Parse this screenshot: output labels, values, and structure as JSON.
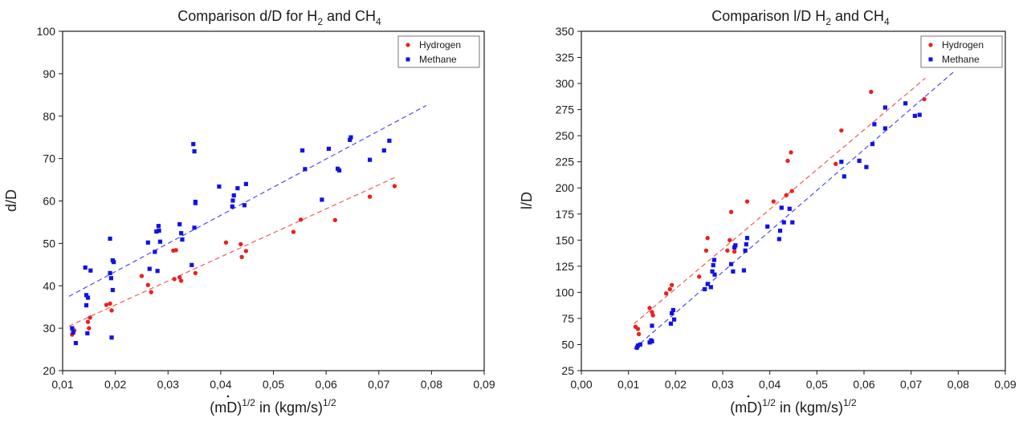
{
  "chart_data": [
    {
      "type": "scatter",
      "title": "Comparison d/D for H",
      "title_sub1": "2",
      "title_mid": " and CH",
      "title_sub2": "4",
      "xlabel_prefix": "(",
      "xlabel_mdot": "m",
      "xlabel_mid": "D)",
      "xlabel_sup1": "1/2",
      "xlabel_mid2": " in (kgm/s)",
      "xlabel_sup2": "1/2",
      "ylabel": "d/D",
      "xlim": [
        0.01,
        0.09
      ],
      "ylim": [
        20,
        100
      ],
      "xticks": [
        "0,01",
        "0,02",
        "0,03",
        "0,04",
        "0,05",
        "0,06",
        "0,07",
        "0,08",
        "0,09"
      ],
      "yticks": [
        "20",
        "30",
        "40",
        "50",
        "60",
        "70",
        "80",
        "90",
        "100"
      ],
      "legend_position": "top-right",
      "grid": false,
      "colors": {
        "hydrogen": "#e8231f",
        "methane": "#1212e6"
      },
      "series": [
        {
          "name": "Hydrogen",
          "marker": "circle",
          "points": [
            [
              0.0118,
              28.5
            ],
            [
              0.0122,
              29.5
            ],
            [
              0.0148,
              31.5
            ],
            [
              0.015,
              30.0
            ],
            [
              0.0152,
              32.5
            ],
            [
              0.0183,
              35.5
            ],
            [
              0.019,
              35.8
            ],
            [
              0.0193,
              34.2
            ],
            [
              0.025,
              42.3
            ],
            [
              0.0262,
              40.2
            ],
            [
              0.0268,
              38.5
            ],
            [
              0.031,
              48.3
            ],
            [
              0.0315,
              48.4
            ],
            [
              0.0312,
              41.6
            ],
            [
              0.0322,
              42.0
            ],
            [
              0.0325,
              41.2
            ],
            [
              0.0352,
              43.0
            ],
            [
              0.041,
              50.2
            ],
            [
              0.0438,
              49.8
            ],
            [
              0.044,
              46.8
            ],
            [
              0.0448,
              48.2
            ],
            [
              0.0538,
              52.7
            ],
            [
              0.0552,
              55.6
            ],
            [
              0.0617,
              55.5
            ],
            [
              0.0683,
              61.0
            ],
            [
              0.073,
              63.5
            ]
          ]
        },
        {
          "name": "Methane",
          "marker": "square",
          "points": [
            [
              0.0118,
              30.0
            ],
            [
              0.012,
              29.0
            ],
            [
              0.0125,
              26.5
            ],
            [
              0.0143,
              44.3
            ],
            [
              0.0145,
              37.8
            ],
            [
              0.0148,
              37.2
            ],
            [
              0.0145,
              35.4
            ],
            [
              0.0147,
              28.8
            ],
            [
              0.0153,
              43.6
            ],
            [
              0.019,
              51.1
            ],
            [
              0.019,
              43.0
            ],
            [
              0.0192,
              41.8
            ],
            [
              0.0195,
              46.0
            ],
            [
              0.0197,
              45.6
            ],
            [
              0.0195,
              39.0
            ],
            [
              0.0193,
              27.8
            ],
            [
              0.0262,
              50.2
            ],
            [
              0.0265,
              44.0
            ],
            [
              0.0275,
              48.0
            ],
            [
              0.0278,
              52.8
            ],
            [
              0.028,
              43.5
            ],
            [
              0.0282,
              54.1
            ],
            [
              0.0283,
              53.0
            ],
            [
              0.0285,
              50.4
            ],
            [
              0.0322,
              54.5
            ],
            [
              0.0325,
              52.4
            ],
            [
              0.0327,
              50.9
            ],
            [
              0.0345,
              44.9
            ],
            [
              0.0348,
              73.4
            ],
            [
              0.035,
              71.7
            ],
            [
              0.035,
              53.7
            ],
            [
              0.0352,
              59.5
            ],
            [
              0.0352,
              59.8
            ],
            [
              0.0397,
              63.4
            ],
            [
              0.0422,
              58.7
            ],
            [
              0.0423,
              60.1
            ],
            [
              0.0425,
              61.3
            ],
            [
              0.0432,
              63.0
            ],
            [
              0.0445,
              59.0
            ],
            [
              0.0448,
              64.0
            ],
            [
              0.0555,
              71.9
            ],
            [
              0.056,
              67.5
            ],
            [
              0.0592,
              60.3
            ],
            [
              0.0605,
              72.3
            ],
            [
              0.0622,
              67.6
            ],
            [
              0.0625,
              67.2
            ],
            [
              0.0645,
              74.4
            ],
            [
              0.0647,
              75.0
            ],
            [
              0.0683,
              69.7
            ],
            [
              0.071,
              71.9
            ],
            [
              0.072,
              74.2
            ]
          ]
        }
      ],
      "trendlines": [
        {
          "name": "Hydrogen",
          "x": [
            0.0112,
            0.073
          ],
          "y": [
            30.5,
            65.5
          ]
        },
        {
          "name": "Methane",
          "x": [
            0.0112,
            0.079
          ],
          "y": [
            37.5,
            82.5
          ]
        }
      ]
    },
    {
      "type": "scatter",
      "title": "Comparison l/D H",
      "title_sub1": "2",
      "title_mid": " and CH",
      "title_sub2": "4",
      "xlabel_prefix": "(",
      "xlabel_mdot": "m",
      "xlabel_mid": "D)",
      "xlabel_sup1": "1/2",
      "xlabel_mid2": " in (kgm/s)",
      "xlabel_sup2": "1/2",
      "ylabel": "l/D",
      "xlim": [
        0.0,
        0.09
      ],
      "ylim": [
        25,
        350
      ],
      "xticks": [
        "0,00",
        "0,01",
        "0,02",
        "0,03",
        "0,04",
        "0,05",
        "0,06",
        "0,07",
        "0,08",
        "0,09"
      ],
      "yticks": [
        "25",
        "50",
        "75",
        "100",
        "125",
        "150",
        "175",
        "200",
        "225",
        "250",
        "275",
        "300",
        "325",
        "350"
      ],
      "legend_position": "top-right",
      "grid": false,
      "colors": {
        "hydrogen": "#e8231f",
        "methane": "#1212e6"
      },
      "series": [
        {
          "name": "Hydrogen",
          "marker": "circle",
          "points": [
            [
              0.0115,
              67.0
            ],
            [
              0.012,
              65.0
            ],
            [
              0.0122,
              60.0
            ],
            [
              0.0145,
              85.0
            ],
            [
              0.015,
              81.0
            ],
            [
              0.0152,
              78.0
            ],
            [
              0.018,
              99.0
            ],
            [
              0.0188,
              103.0
            ],
            [
              0.0192,
              107.0
            ],
            [
              0.025,
              115.0
            ],
            [
              0.0265,
              140.0
            ],
            [
              0.0268,
              152.0
            ],
            [
              0.031,
              140.0
            ],
            [
              0.0315,
              150.0
            ],
            [
              0.0318,
              177.0
            ],
            [
              0.0325,
              139.0
            ],
            [
              0.0352,
              187.0
            ],
            [
              0.0408,
              187.0
            ],
            [
              0.0435,
              193.0
            ],
            [
              0.0438,
              226.0
            ],
            [
              0.0445,
              234.0
            ],
            [
              0.0447,
              197.0
            ],
            [
              0.054,
              223.0
            ],
            [
              0.0552,
              255.0
            ],
            [
              0.0615,
              292.0
            ],
            [
              0.0728,
              285.0
            ]
          ]
        },
        {
          "name": "Methane",
          "marker": "square",
          "points": [
            [
              0.0118,
              47.0
            ],
            [
              0.012,
              49.0
            ],
            [
              0.0125,
              50.0
            ],
            [
              0.0145,
              52.0
            ],
            [
              0.0148,
              54.0
            ],
            [
              0.015,
              53.0
            ],
            [
              0.015,
              68.0
            ],
            [
              0.019,
              70.0
            ],
            [
              0.0192,
              80.0
            ],
            [
              0.0195,
              83.0
            ],
            [
              0.0197,
              74.0
            ],
            [
              0.0262,
              103.0
            ],
            [
              0.0268,
              108.0
            ],
            [
              0.0275,
              105.0
            ],
            [
              0.0278,
              120.0
            ],
            [
              0.028,
              126.0
            ],
            [
              0.0282,
              131.0
            ],
            [
              0.0283,
              117.0
            ],
            [
              0.0318,
              127.0
            ],
            [
              0.0322,
              120.0
            ],
            [
              0.0325,
              143.0
            ],
            [
              0.0327,
              145.0
            ],
            [
              0.0345,
              121.0
            ],
            [
              0.0348,
              140.0
            ],
            [
              0.035,
              146.0
            ],
            [
              0.0352,
              152.0
            ],
            [
              0.0395,
              163.0
            ],
            [
              0.042,
              151.0
            ],
            [
              0.0422,
              159.0
            ],
            [
              0.0425,
              181.0
            ],
            [
              0.043,
              167.0
            ],
            [
              0.0442,
              180.0
            ],
            [
              0.0448,
              167.0
            ],
            [
              0.0552,
              225.0
            ],
            [
              0.0558,
              211.0
            ],
            [
              0.059,
              226.0
            ],
            [
              0.0605,
              220.0
            ],
            [
              0.0618,
              242.0
            ],
            [
              0.0622,
              261.0
            ],
            [
              0.0645,
              277.0
            ],
            [
              0.0645,
              257.0
            ],
            [
              0.0688,
              281.0
            ],
            [
              0.0708,
              269.0
            ],
            [
              0.0718,
              270.0
            ]
          ]
        }
      ],
      "trendlines": [
        {
          "name": "Hydrogen",
          "x": [
            0.0112,
            0.073
          ],
          "y": [
            70.0,
            305.0
          ]
        },
        {
          "name": "Methane",
          "x": [
            0.0112,
            0.079
          ],
          "y": [
            46.0,
            311.0
          ]
        }
      ]
    }
  ]
}
